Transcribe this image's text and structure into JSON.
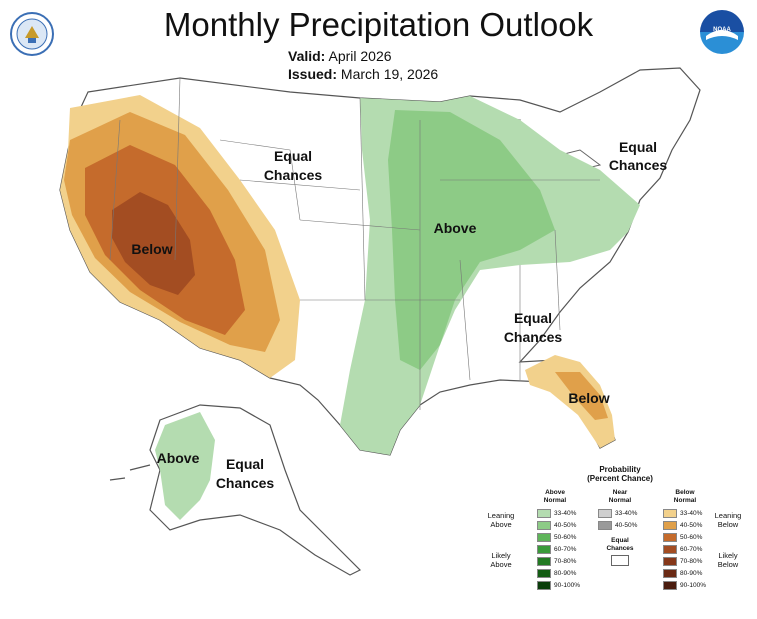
{
  "title": "Monthly Precipitation Outlook",
  "valid_label": "Valid:",
  "valid_value": "April 2026",
  "issued_label": "Issued:",
  "issued_value": "March 19, 2026",
  "logos": {
    "left": "doc-seal-icon",
    "right": "noaa-logo-icon",
    "noaa_text": "NOAA"
  },
  "map_labels": {
    "west_below": "Below",
    "north_equal_1": "Equal",
    "north_equal_2": "Chances",
    "central_above": "Above",
    "northeast_equal_1": "Equal",
    "northeast_equal_2": "Chances",
    "southeast_equal_1": "Equal",
    "southeast_equal_2": "Chances",
    "florida_below": "Below",
    "alaska_above": "Above",
    "alaska_equal_1": "Equal",
    "alaska_equal_2": "Chances"
  },
  "colors": {
    "above_33_40": "#b4dcb0",
    "above_40_50": "#8dcb86",
    "above_50_60": "#5fb55a",
    "below_33_40": "#f2d18c",
    "below_40_50": "#e0a04a",
    "below_50_60": "#c56b2c",
    "below_60_70": "#a34d22"
  },
  "legend": {
    "title_1": "Probability",
    "title_2": "(Percent Chance)",
    "above_head_1": "Above",
    "above_head_2": "Normal",
    "near_head_1": "Near",
    "near_head_2": "Normal",
    "below_head_1": "Below",
    "below_head_2": "Normal",
    "above_ranges": [
      "33-40%",
      "40-50%",
      "50-60%",
      "60-70%",
      "70-80%",
      "80-90%",
      "90-100%"
    ],
    "above_colors": [
      "#b4dcb0",
      "#8dcb86",
      "#5fb55a",
      "#3a9a3a",
      "#237a23",
      "#135c13",
      "#0a3d0a"
    ],
    "near_ranges": [
      "33-40%",
      "40-50%"
    ],
    "near_colors": [
      "#cfcfcf",
      "#9a9a9a"
    ],
    "equal_1": "Equal",
    "equal_2": "Chances",
    "below_ranges": [
      "33-40%",
      "40-50%",
      "50-60%",
      "60-70%",
      "70-80%",
      "80-90%",
      "90-100%"
    ],
    "below_colors": [
      "#f2d18c",
      "#e0a04a",
      "#c56b2c",
      "#a34d22",
      "#86381a",
      "#6a2a14",
      "#4a1c0e"
    ],
    "leaning_above_1": "Leaning",
    "leaning_above_2": "Above",
    "likely_above_1": "Likely",
    "likely_above_2": "Above",
    "leaning_below_1": "Leaning",
    "leaning_below_2": "Below",
    "likely_below_1": "Likely",
    "likely_below_2": "Below"
  }
}
